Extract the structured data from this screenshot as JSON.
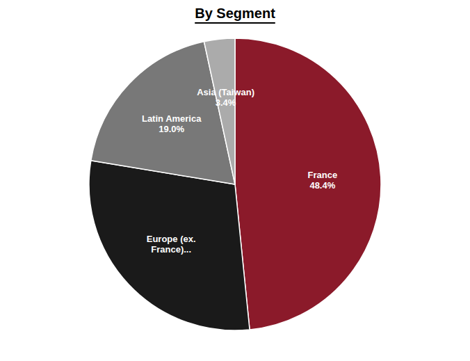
{
  "chart_data": {
    "type": "pie",
    "title": "By Segment",
    "categories": [
      "France\n48.4%",
      "Europe (ex.\nFrance)...",
      "Latin America\n19.0%",
      "Asia (Taiwan)\n3.4%"
    ],
    "values": [
      48.4,
      29.2,
      19.0,
      3.4
    ],
    "colors": [
      "#8B1A2A",
      "#1A1A1A",
      "#787878",
      "#ABABAB"
    ]
  }
}
